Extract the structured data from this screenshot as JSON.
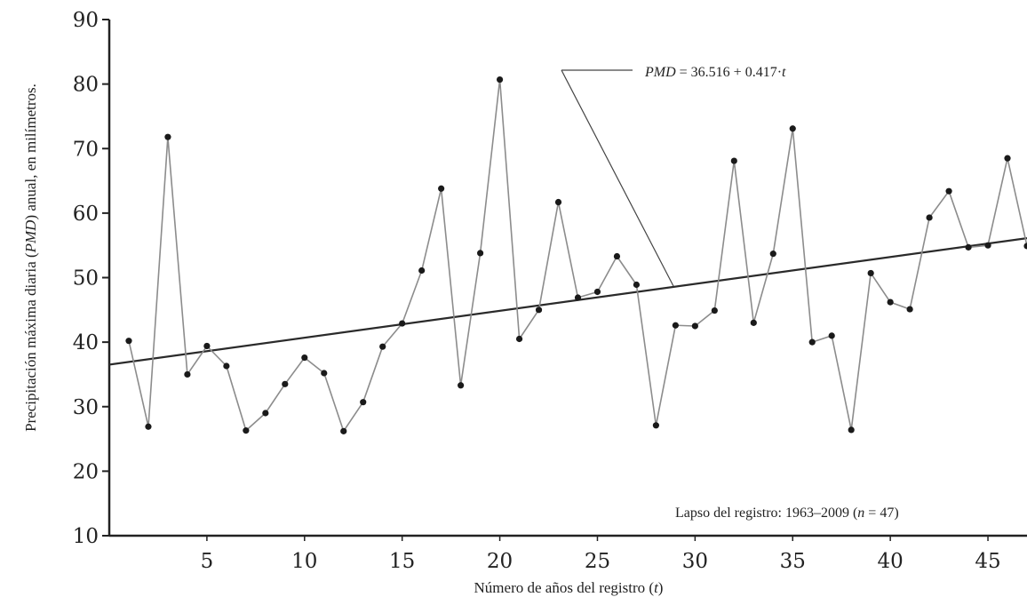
{
  "chart_data": {
    "type": "line",
    "title": "",
    "xlabel": "Número de años del registro (t)",
    "xlabel_parts": [
      "Número de años del registro (",
      "t",
      ")"
    ],
    "ylabel": "Precipitación máxima diaria (PMD) anual, en milímetros.",
    "ylabel_parts": [
      "Precipitación máxima diaria (",
      "PMD",
      ") anual, en milímetros."
    ],
    "xlim": [
      0,
      47
    ],
    "ylim": [
      10,
      90
    ],
    "x_ticks": [
      5,
      10,
      15,
      20,
      25,
      30,
      35,
      40,
      45
    ],
    "y_ticks": [
      10,
      20,
      30,
      40,
      50,
      60,
      70,
      80,
      90
    ],
    "grid": false,
    "series": [
      {
        "x": [
          1,
          2,
          3,
          4,
          5,
          6,
          7,
          8,
          9,
          10,
          11,
          12,
          13,
          14,
          15,
          16,
          17,
          18,
          19,
          20,
          21,
          22,
          23,
          24,
          25,
          26,
          27,
          28,
          29,
          30,
          31,
          32,
          33,
          34,
          35,
          36,
          37,
          38,
          39,
          40,
          41,
          42,
          43,
          44,
          45,
          46,
          47
        ],
        "values": [
          40.2,
          26.9,
          71.8,
          35.0,
          39.4,
          36.3,
          26.3,
          29.0,
          33.5,
          37.6,
          35.2,
          26.2,
          30.7,
          39.3,
          42.9,
          51.1,
          63.8,
          33.3,
          53.8,
          80.7,
          40.5,
          45.0,
          61.7,
          46.9,
          47.8,
          53.3,
          48.9,
          27.1,
          42.6,
          42.5,
          44.9,
          68.1,
          43.0,
          53.7,
          73.1,
          40.0,
          41.0,
          26.4,
          50.7,
          46.2,
          45.1,
          59.3,
          63.4,
          54.7,
          55.0,
          68.5,
          54.9
        ]
      }
    ],
    "trend_line": {
      "intercept": 36.516,
      "slope": 0.417
    },
    "annotations": {
      "equation_parts": [
        "PMD",
        " = 36.516 + 0.417·",
        "t"
      ],
      "record_span_parts": [
        "Lapso del registro: 1963–2009 (",
        "n",
        " = 47)"
      ]
    },
    "colors": {
      "series_line": "#8c8c8c",
      "markers": "#1a1a1a",
      "trend": "#2a2a2a",
      "axis": "#222222"
    }
  }
}
